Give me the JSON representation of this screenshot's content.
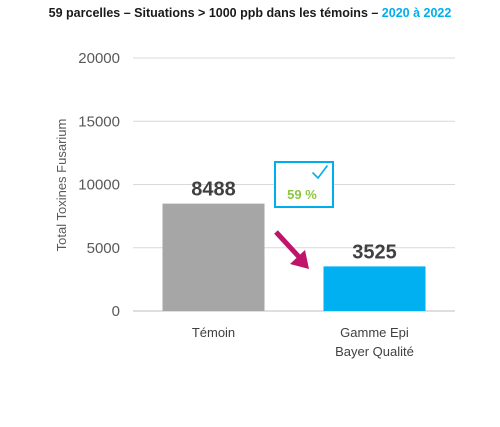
{
  "title": {
    "main": "59 parcelles – Situations > 1000 ppb dans les témoins – ",
    "highlight": "2020 à 2022"
  },
  "colors": {
    "highlight": "#00aeef",
    "badge_text": "#8cc63f",
    "arrow": "#c0146c"
  },
  "chart_data": {
    "type": "bar",
    "categories": [
      "Témoin",
      "Gamme Epi Bayer Qualité"
    ],
    "category_lines": [
      [
        "Témoin"
      ],
      [
        "Gamme Epi",
        "Bayer Qualité"
      ]
    ],
    "values": [
      8488,
      3525
    ],
    "value_labels": [
      "8488",
      "3525"
    ],
    "bar_colors": [
      "#a6a6a6",
      "#00b0f0"
    ],
    "ylabel": "Total Toxines Fusarium",
    "ylim": [
      0,
      20000
    ],
    "yticks": [
      0,
      5000,
      10000,
      15000,
      20000
    ],
    "grid": true,
    "annotation": {
      "text": "59 %",
      "icon": "checkmark-icon"
    }
  }
}
